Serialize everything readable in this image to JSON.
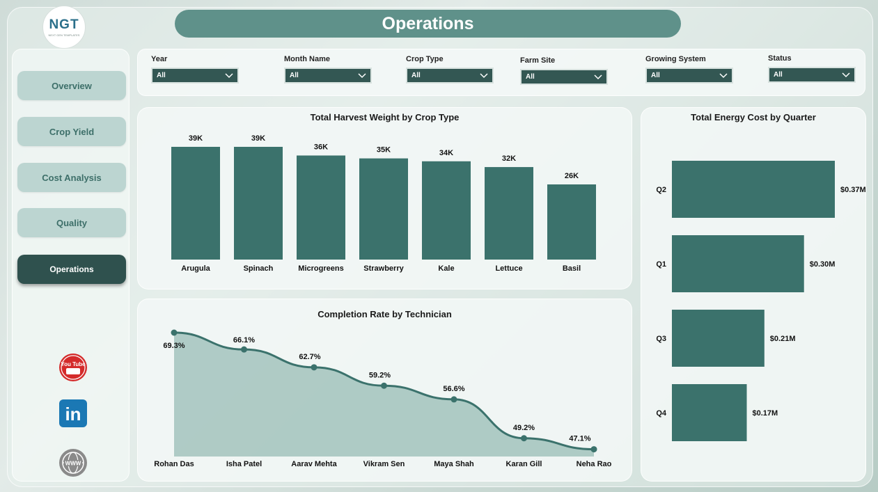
{
  "header": {
    "title": "Operations",
    "logo_text": "NGT",
    "logo_subtitle": "NEXT GEN TEMPLATES"
  },
  "sidebar": {
    "items": [
      {
        "label": "Overview",
        "active": false
      },
      {
        "label": "Crop Yield",
        "active": false
      },
      {
        "label": "Cost Analysis",
        "active": false
      },
      {
        "label": "Quality",
        "active": false
      },
      {
        "label": "Operations",
        "active": true
      }
    ],
    "social_icons": [
      "youtube-icon",
      "linkedin-icon",
      "website-icon"
    ],
    "youtube_logo_text": "You Tube",
    "linkedin_logo_text": "in",
    "website_logo_text": "WWW"
  },
  "filters": [
    {
      "label": "Year",
      "value": "All"
    },
    {
      "label": "Month Name",
      "value": "All"
    },
    {
      "label": "Crop Type",
      "value": "All"
    },
    {
      "label": "Farm Site",
      "value": "All"
    },
    {
      "label": "Growing System",
      "value": "All"
    },
    {
      "label": "Status",
      "value": "All"
    }
  ],
  "colors": {
    "accent": "#3b726c",
    "active_nav": "#2f514e",
    "nav": "#bcd5d1",
    "title_bar": "#5f918a",
    "area_fill": "#98bcb6"
  },
  "chart_data": [
    {
      "id": "harvest",
      "type": "bar",
      "title": "Total Harvest Weight by Crop Type",
      "categories": [
        "Arugula",
        "Spinach",
        "Microgreens",
        "Strawberry",
        "Kale",
        "Lettuce",
        "Basil"
      ],
      "values": [
        39,
        39,
        36,
        35,
        34,
        32,
        26
      ],
      "labels": [
        "39K",
        "39K",
        "36K",
        "35K",
        "34K",
        "32K",
        "26K"
      ]
    },
    {
      "id": "energy",
      "type": "bar",
      "orientation": "horizontal",
      "title": "Total Energy Cost by Quarter",
      "categories": [
        "Q2",
        "Q1",
        "Q3",
        "Q4"
      ],
      "values": [
        0.37,
        0.3,
        0.21,
        0.17
      ],
      "labels": [
        "$0.37M",
        "$0.30M",
        "$0.21M",
        "$0.17M"
      ]
    },
    {
      "id": "completion",
      "type": "area",
      "title": "Completion Rate by Technician",
      "categories": [
        "Rohan Das",
        "Isha Patel",
        "Aarav Mehta",
        "Vikram Sen",
        "Maya Shah",
        "Karan Gill",
        "Neha Rao"
      ],
      "values": [
        69.3,
        66.1,
        62.7,
        59.2,
        56.6,
        49.2,
        47.1
      ],
      "labels": [
        "69.3%",
        "66.1%",
        "62.7%",
        "59.2%",
        "56.6%",
        "49.2%",
        "47.1%"
      ]
    }
  ]
}
